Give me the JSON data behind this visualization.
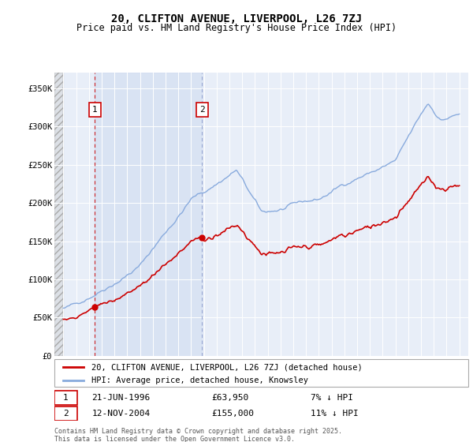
{
  "title": "20, CLIFTON AVENUE, LIVERPOOL, L26 7ZJ",
  "subtitle": "Price paid vs. HM Land Registry's House Price Index (HPI)",
  "ylabel_ticks": [
    "£0",
    "£50K",
    "£100K",
    "£150K",
    "£200K",
    "£250K",
    "£300K",
    "£350K"
  ],
  "ytick_vals": [
    0,
    50000,
    100000,
    150000,
    200000,
    250000,
    300000,
    350000
  ],
  "ylim": [
    0,
    370000
  ],
  "xlim_start": 1993.3,
  "xlim_end": 2025.7,
  "sale1_date": 1996.47,
  "sale1_price": 63950,
  "sale1_label": "1",
  "sale1_text": "21-JUN-1996",
  "sale1_price_text": "£63,950",
  "sale1_hpi_text": "7% ↓ HPI",
  "sale2_date": 2004.87,
  "sale2_price": 155000,
  "sale2_label": "2",
  "sale2_text": "12-NOV-2004",
  "sale2_price_text": "£155,000",
  "sale2_hpi_text": "11% ↓ HPI",
  "red_color": "#cc0000",
  "blue_color": "#88aadd",
  "hatch_color": "#cccccc",
  "background_color": "#e8eef8",
  "shade_color": "#d0dcf0",
  "legend_line1": "20, CLIFTON AVENUE, LIVERPOOL, L26 7ZJ (detached house)",
  "legend_line2": "HPI: Average price, detached house, Knowsley",
  "footnote": "Contains HM Land Registry data © Crown copyright and database right 2025.\nThis data is licensed under the Open Government Licence v3.0."
}
